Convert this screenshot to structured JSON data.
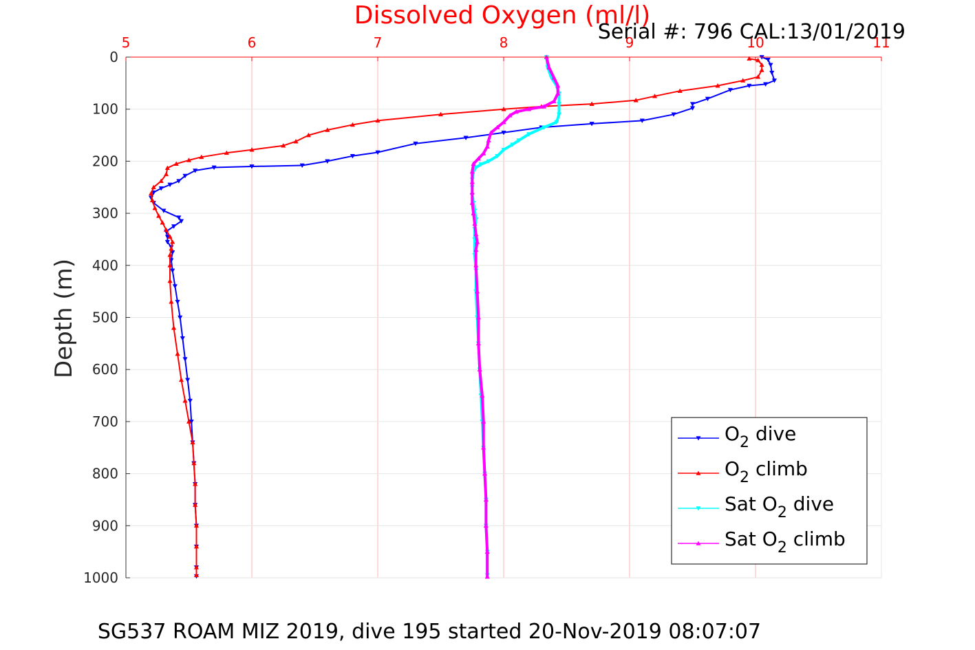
{
  "chart_data": {
    "type": "scatter",
    "title": "Dissolved Oxygen (ml/l)",
    "subtitle": "Serial #: 796  CAL:13/01/2019",
    "caption": "SG537 ROAM MIZ 2019, dive 195 started 20-Nov-2019 08:07:07",
    "xlabel": "",
    "ylabel": "Depth (m)",
    "x_axis_position": "top",
    "y_axis_reversed": true,
    "xlim": [
      5,
      11
    ],
    "ylim": [
      0,
      1000
    ],
    "x_ticks": [
      "5",
      "6",
      "7",
      "8",
      "9",
      "10",
      "11"
    ],
    "y_ticks": [
      "0",
      "100",
      "200",
      "300",
      "400",
      "500",
      "600",
      "700",
      "800",
      "900",
      "1000"
    ],
    "grid": true,
    "legend_position": "bottom-right",
    "colors": {
      "x_axis": "#ff0000",
      "y_axis": "#333333",
      "grid": "#e6e6e6",
      "x_grid": "#ffb3b3"
    },
    "series": [
      {
        "name_main": "O",
        "name_sub": "2",
        "name_rest": " dive",
        "color": "#0000ff",
        "marker": "triangle-down",
        "points": [
          [
            10.05,
            0
          ],
          [
            10.1,
            5
          ],
          [
            10.12,
            15
          ],
          [
            10.13,
            30
          ],
          [
            10.15,
            45
          ],
          [
            10.08,
            52
          ],
          [
            9.95,
            55
          ],
          [
            9.8,
            63
          ],
          [
            9.62,
            80
          ],
          [
            9.5,
            90
          ],
          [
            9.5,
            98
          ],
          [
            9.35,
            110
          ],
          [
            9.1,
            122
          ],
          [
            8.7,
            128
          ],
          [
            8.3,
            135
          ],
          [
            8.0,
            145
          ],
          [
            7.7,
            155
          ],
          [
            7.3,
            166
          ],
          [
            7.0,
            183
          ],
          [
            6.8,
            190
          ],
          [
            6.6,
            200
          ],
          [
            6.4,
            208
          ],
          [
            6.0,
            210
          ],
          [
            5.7,
            212
          ],
          [
            5.55,
            218
          ],
          [
            5.47,
            228
          ],
          [
            5.42,
            238
          ],
          [
            5.35,
            245
          ],
          [
            5.28,
            252
          ],
          [
            5.22,
            260
          ],
          [
            5.2,
            270
          ],
          [
            5.22,
            280
          ],
          [
            5.3,
            295
          ],
          [
            5.42,
            308
          ],
          [
            5.44,
            315
          ],
          [
            5.38,
            325
          ],
          [
            5.32,
            335
          ],
          [
            5.33,
            345
          ],
          [
            5.33,
            355
          ],
          [
            5.36,
            365
          ],
          [
            5.37,
            375
          ],
          [
            5.36,
            390
          ],
          [
            5.37,
            410
          ],
          [
            5.39,
            440
          ],
          [
            5.41,
            470
          ],
          [
            5.43,
            500
          ],
          [
            5.45,
            540
          ],
          [
            5.47,
            580
          ],
          [
            5.49,
            620
          ],
          [
            5.51,
            660
          ],
          [
            5.52,
            700
          ],
          [
            5.53,
            740
          ],
          [
            5.54,
            780
          ],
          [
            5.55,
            820
          ],
          [
            5.55,
            860
          ],
          [
            5.56,
            900
          ],
          [
            5.56,
            940
          ],
          [
            5.56,
            980
          ],
          [
            5.56,
            997
          ]
        ]
      },
      {
        "name_main": "O",
        "name_sub": "2",
        "name_rest": " climb",
        "color": "#ff0000",
        "marker": "triangle-up",
        "points": [
          [
            9.95,
            3
          ],
          [
            10.02,
            6
          ],
          [
            10.05,
            15
          ],
          [
            10.05,
            25
          ],
          [
            10.02,
            38
          ],
          [
            9.9,
            45
          ],
          [
            9.7,
            55
          ],
          [
            9.4,
            65
          ],
          [
            9.2,
            75
          ],
          [
            9.05,
            83
          ],
          [
            8.7,
            90
          ],
          [
            8.3,
            95
          ],
          [
            8.0,
            100
          ],
          [
            7.5,
            110
          ],
          [
            7.0,
            122
          ],
          [
            6.8,
            130
          ],
          [
            6.6,
            140
          ],
          [
            6.45,
            150
          ],
          [
            6.35,
            162
          ],
          [
            6.25,
            170
          ],
          [
            6.0,
            178
          ],
          [
            5.8,
            184
          ],
          [
            5.6,
            192
          ],
          [
            5.5,
            198
          ],
          [
            5.4,
            205
          ],
          [
            5.33,
            213
          ],
          [
            5.32,
            225
          ],
          [
            5.28,
            238
          ],
          [
            5.22,
            250
          ],
          [
            5.2,
            262
          ],
          [
            5.21,
            275
          ],
          [
            5.23,
            290
          ],
          [
            5.26,
            305
          ],
          [
            5.29,
            318
          ],
          [
            5.32,
            332
          ],
          [
            5.35,
            345
          ],
          [
            5.37,
            355
          ],
          [
            5.36,
            368
          ],
          [
            5.35,
            380
          ],
          [
            5.35,
            400
          ],
          [
            5.35,
            430
          ],
          [
            5.36,
            470
          ],
          [
            5.38,
            520
          ],
          [
            5.41,
            570
          ],
          [
            5.44,
            620
          ],
          [
            5.47,
            660
          ],
          [
            5.5,
            700
          ],
          [
            5.53,
            740
          ],
          [
            5.54,
            780
          ],
          [
            5.55,
            820
          ],
          [
            5.55,
            860
          ],
          [
            5.56,
            900
          ],
          [
            5.56,
            940
          ],
          [
            5.56,
            980
          ],
          [
            5.56,
            995
          ]
        ]
      },
      {
        "name_main": "Sat O",
        "name_sub": "2",
        "name_rest": " dive",
        "color": "#00ffff",
        "marker": "triangle-down",
        "points": [
          [
            8.34,
            0
          ],
          [
            8.35,
            20
          ],
          [
            8.38,
            40
          ],
          [
            8.42,
            55
          ],
          [
            8.44,
            70
          ],
          [
            8.44,
            90
          ],
          [
            8.44,
            110
          ],
          [
            8.42,
            125
          ],
          [
            8.32,
            135
          ],
          [
            8.2,
            148
          ],
          [
            8.12,
            160
          ],
          [
            8.07,
            168
          ],
          [
            8.0,
            178
          ],
          [
            7.95,
            190
          ],
          [
            7.88,
            200
          ],
          [
            7.82,
            206
          ],
          [
            7.78,
            212
          ],
          [
            7.76,
            220
          ],
          [
            7.75,
            235
          ],
          [
            7.75,
            250
          ],
          [
            7.75,
            265
          ],
          [
            7.76,
            280
          ],
          [
            7.77,
            295
          ],
          [
            7.78,
            312
          ],
          [
            7.77,
            330
          ],
          [
            7.77,
            350
          ],
          [
            7.77,
            380
          ],
          [
            7.78,
            410
          ],
          [
            7.78,
            450
          ],
          [
            7.79,
            500
          ],
          [
            7.8,
            550
          ],
          [
            7.81,
            600
          ],
          [
            7.82,
            650
          ],
          [
            7.83,
            700
          ],
          [
            7.84,
            750
          ],
          [
            7.85,
            800
          ],
          [
            7.86,
            850
          ],
          [
            7.86,
            900
          ],
          [
            7.87,
            950
          ],
          [
            7.87,
            995
          ]
        ]
      },
      {
        "name_main": "Sat O",
        "name_sub": "2",
        "name_rest": " climb",
        "color": "#ff00ff",
        "marker": "triangle-up",
        "points": [
          [
            8.34,
            0
          ],
          [
            8.36,
            20
          ],
          [
            8.4,
            40
          ],
          [
            8.43,
            55
          ],
          [
            8.43,
            70
          ],
          [
            8.4,
            85
          ],
          [
            8.32,
            95
          ],
          [
            8.2,
            100
          ],
          [
            8.1,
            105
          ],
          [
            8.05,
            112
          ],
          [
            8.0,
            125
          ],
          [
            7.95,
            135
          ],
          [
            7.9,
            145
          ],
          [
            7.88,
            160
          ],
          [
            7.87,
            172
          ],
          [
            7.84,
            185
          ],
          [
            7.8,
            195
          ],
          [
            7.76,
            205
          ],
          [
            7.75,
            220
          ],
          [
            7.75,
            240
          ],
          [
            7.75,
            260
          ],
          [
            7.75,
            280
          ],
          [
            7.76,
            300
          ],
          [
            7.77,
            320
          ],
          [
            7.78,
            340
          ],
          [
            7.79,
            355
          ],
          [
            7.78,
            370
          ],
          [
            7.78,
            400
          ],
          [
            7.79,
            450
          ],
          [
            7.8,
            500
          ],
          [
            7.8,
            550
          ],
          [
            7.81,
            600
          ],
          [
            7.83,
            650
          ],
          [
            7.84,
            700
          ],
          [
            7.84,
            750
          ],
          [
            7.85,
            800
          ],
          [
            7.86,
            850
          ],
          [
            7.86,
            900
          ],
          [
            7.87,
            950
          ],
          [
            7.87,
            998
          ]
        ]
      }
    ]
  }
}
